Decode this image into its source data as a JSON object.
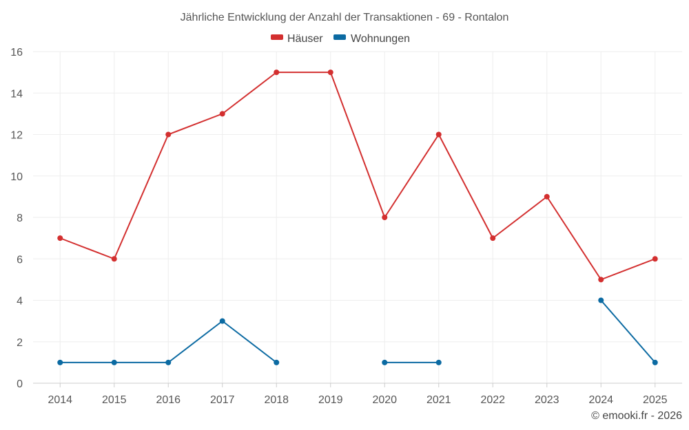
{
  "chart_data": {
    "type": "line",
    "title": "Jährliche Entwicklung der Anzahl der Transaktionen - 69 - Rontalon",
    "categories": [
      "2014",
      "2015",
      "2016",
      "2017",
      "2018",
      "2019",
      "2020",
      "2021",
      "2022",
      "2023",
      "2024",
      "2025"
    ],
    "ylim": [
      0,
      16
    ],
    "yticks": [
      0,
      2,
      4,
      6,
      8,
      10,
      12,
      14,
      16
    ],
    "grid": true,
    "legend_position": "top-center",
    "series": [
      {
        "name": "Häuser",
        "color": "#d32f2f",
        "values": [
          7,
          6,
          12,
          13,
          15,
          15,
          8,
          12,
          7,
          9,
          5,
          6
        ]
      },
      {
        "name": "Wohnungen",
        "color": "#0b6aa2",
        "values": [
          1,
          1,
          1,
          3,
          1,
          null,
          1,
          1,
          null,
          null,
          4,
          1
        ]
      }
    ]
  },
  "credit": "© emooki.fr - 2026"
}
